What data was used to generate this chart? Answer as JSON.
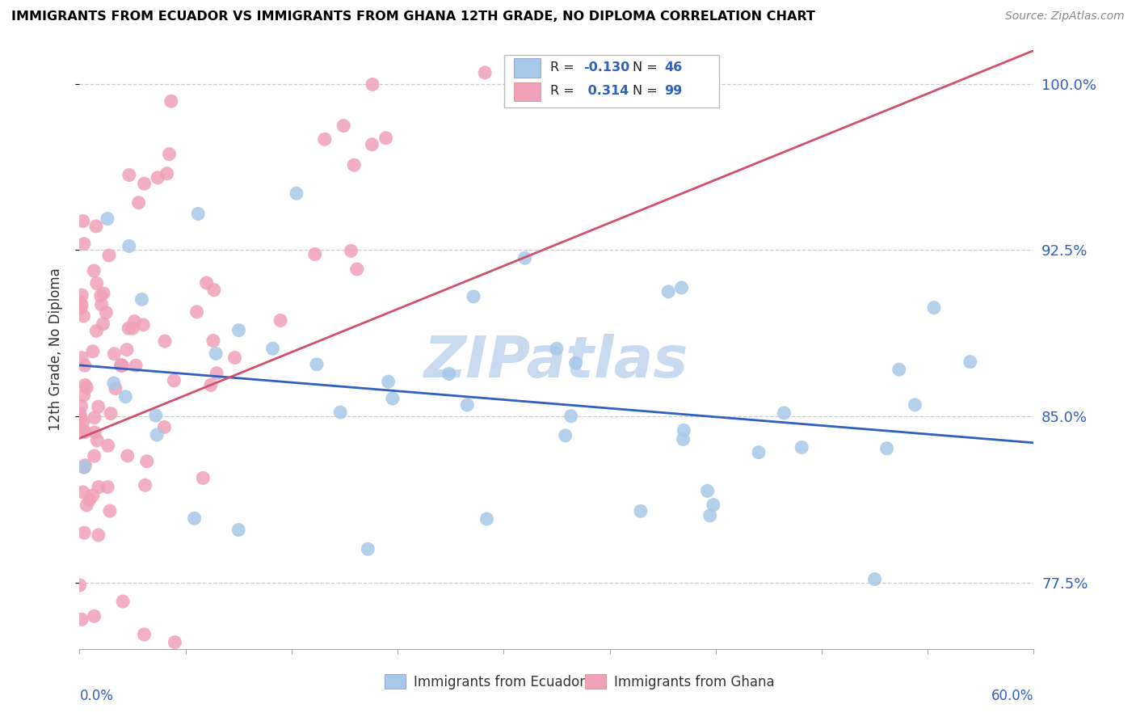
{
  "title": "IMMIGRANTS FROM ECUADOR VS IMMIGRANTS FROM GHANA 12TH GRADE, NO DIPLOMA CORRELATION CHART",
  "source": "Source: ZipAtlas.com",
  "ylabel": "12th Grade, No Diploma",
  "x_lim": [
    0.0,
    0.6
  ],
  "y_lim": [
    0.745,
    1.015
  ],
  "y_ticks": [
    0.775,
    0.85,
    0.925,
    1.0
  ],
  "y_tick_labels": [
    "77.5%",
    "85.0%",
    "92.5%",
    "100.0%"
  ],
  "series1_color": "#a8c8e8",
  "series2_color": "#f0a0b8",
  "trendline1_color": "#3060c0",
  "trendline2_color": "#d05070",
  "watermark_color": "#c8daf0",
  "ecuador_r": -0.13,
  "ghana_r": 0.314,
  "ecuador_n": 46,
  "ghana_n": 99,
  "trendline1_x": [
    0.0,
    0.6
  ],
  "trendline1_y": [
    0.873,
    0.838
  ],
  "trendline2_x": [
    0.0,
    0.6
  ],
  "trendline2_y": [
    0.84,
    1.015
  ]
}
